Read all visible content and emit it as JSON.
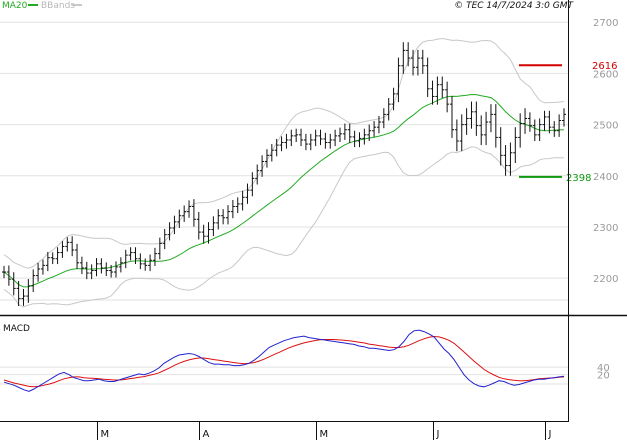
{
  "header": {
    "copyright": "© TEC 14/7/2024 3:0 GMT"
  },
  "colors": {
    "candles": "#111111",
    "ma20": "#22aa22",
    "bbands": "#c8c8c8",
    "resistance": "#d40000",
    "support": "#119911",
    "macd": "#2222cc",
    "signal": "#dd1111",
    "grid": "#e2e2e2"
  },
  "chart_data": [
    {
      "type": "candlestick",
      "title": "",
      "legend": [
        "MA20",
        "BBands"
      ],
      "legend_position": "top-left",
      "grid": true,
      "ylim": [
        2130,
        2720
      ],
      "ytick_labels": [
        "2700",
        "2600",
        "2500",
        "2400",
        "2300",
        "2200"
      ],
      "yticks": [
        2700,
        2600,
        2500,
        2400,
        2300,
        2200
      ],
      "xtick_labels": [
        "M",
        "A",
        "M",
        "J",
        "J"
      ],
      "xtick_positions": [
        19,
        40,
        64,
        88,
        111
      ],
      "closes": [
        2212,
        2198,
        2180,
        2160,
        2165,
        2185,
        2205,
        2218,
        2225,
        2240,
        2238,
        2250,
        2262,
        2270,
        2255,
        2230,
        2220,
        2210,
        2215,
        2228,
        2220,
        2215,
        2212,
        2222,
        2230,
        2245,
        2250,
        2238,
        2228,
        2225,
        2235,
        2248,
        2268,
        2285,
        2298,
        2310,
        2322,
        2330,
        2340,
        2315,
        2290,
        2282,
        2295,
        2308,
        2322,
        2318,
        2330,
        2340,
        2345,
        2358,
        2372,
        2395,
        2410,
        2428,
        2440,
        2450,
        2460,
        2465,
        2470,
        2478,
        2480,
        2470,
        2462,
        2470,
        2478,
        2472,
        2465,
        2470,
        2478,
        2482,
        2490,
        2476,
        2468,
        2473,
        2480,
        2488,
        2495,
        2505,
        2520,
        2540,
        2560,
        2615,
        2645,
        2630,
        2612,
        2630,
        2615,
        2570,
        2555,
        2578,
        2568,
        2540,
        2490,
        2468,
        2500,
        2512,
        2525,
        2498,
        2480,
        2505,
        2520,
        2475,
        2440,
        2420,
        2445,
        2475,
        2502,
        2512,
        2498,
        2480,
        2500,
        2515,
        2495,
        2488,
        2508,
        2520
      ],
      "range": [
        30,
        32,
        34,
        36,
        35,
        33,
        30,
        30,
        28,
        28,
        26,
        26,
        26,
        25,
        30,
        30,
        30,
        30,
        30,
        28,
        27,
        27,
        27,
        27,
        27,
        26,
        26,
        26,
        26,
        26,
        28,
        28,
        28,
        28,
        28,
        30,
        30,
        30,
        30,
        36,
        36,
        36,
        36,
        32,
        32,
        32,
        32,
        32,
        32,
        32,
        32,
        30,
        30,
        30,
        30,
        30,
        30,
        30,
        30,
        30,
        30,
        30,
        30,
        30,
        30,
        30,
        30,
        30,
        30,
        30,
        30,
        30,
        30,
        30,
        30,
        30,
        30,
        30,
        30,
        30,
        30,
        40,
        40,
        40,
        40,
        40,
        40,
        40,
        40,
        40,
        40,
        40,
        40,
        50,
        50,
        50,
        50,
        50,
        50,
        50,
        50,
        50,
        50,
        50,
        50,
        50,
        50,
        50,
        30,
        30,
        30,
        30,
        30,
        30,
        30,
        30
      ],
      "levels": [
        {
          "label": "2616",
          "value": 2616,
          "role": "resistance"
        },
        {
          "label": "2398",
          "value": 2398,
          "role": "support"
        }
      ]
    },
    {
      "type": "line",
      "title": "MACD",
      "ylim": [
        -100,
        170
      ],
      "yticks": [
        40,
        20
      ],
      "ytick_labels": [
        "40",
        "20"
      ],
      "series": [
        {
          "name": "",
          "values": [
            0,
            -4,
            -8,
            -14,
            -20,
            -24,
            -18,
            -10,
            -2,
            6,
            14,
            22,
            26,
            20,
            12,
            8,
            4,
            4,
            6,
            8,
            4,
            2,
            2,
            6,
            10,
            14,
            18,
            22,
            20,
            24,
            30,
            38,
            50,
            58,
            66,
            72,
            74,
            76,
            74,
            68,
            60,
            52,
            48,
            48,
            46,
            46,
            44,
            44,
            46,
            50,
            58,
            68,
            80,
            92,
            98,
            104,
            110,
            114,
            118,
            120,
            122,
            118,
            116,
            114,
            112,
            110,
            108,
            106,
            104,
            102,
            100,
            96,
            94,
            90,
            90,
            88,
            86,
            84,
            86,
            94,
            108,
            126,
            136,
            138,
            134,
            128,
            120,
            104,
            88,
            76,
            60,
            40,
            20,
            6,
            -4,
            -10,
            -12,
            -8,
            -2,
            4,
            2,
            -4,
            -8,
            -6,
            -2,
            2,
            6,
            8,
            8,
            10,
            12,
            14,
            16
          ]
        },
        {
          "name": "",
          "values": [
            6,
            2,
            -2,
            -5,
            -8,
            -11,
            -12,
            -11,
            -8,
            -5,
            -1,
            4,
            9,
            12,
            14,
            14,
            12,
            11,
            10,
            9,
            8,
            7,
            6,
            6,
            7,
            9,
            11,
            13,
            15,
            18,
            21,
            25,
            31,
            37,
            44,
            50,
            55,
            59,
            62,
            64,
            64,
            62,
            60,
            58,
            56,
            54,
            52,
            50,
            49,
            50,
            52,
            56,
            61,
            67,
            73,
            79,
            85,
            91,
            96,
            100,
            104,
            107,
            110,
            112,
            113,
            113,
            113,
            112,
            111,
            110,
            108,
            106,
            104,
            101,
            99,
            97,
            95,
            93,
            92,
            92,
            94,
            98,
            104,
            110,
            115,
            119,
            121,
            120,
            116,
            111,
            103,
            92,
            80,
            68,
            56,
            45,
            34,
            26,
            19,
            13,
            9,
            7,
            5,
            4,
            4,
            5,
            7,
            9,
            10,
            11,
            12,
            13,
            14
          ]
        }
      ]
    }
  ]
}
